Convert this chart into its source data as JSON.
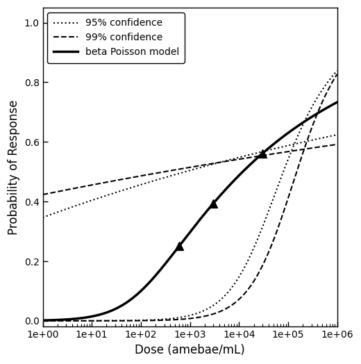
{
  "title": "",
  "xlabel": "Dose (amebae/mL)",
  "ylabel": "Probability of Response",
  "xlim_log": [
    0,
    6
  ],
  "ylim": [
    -0.02,
    1.05
  ],
  "alpha_main": 0.14192,
  "N50_main": 11908,
  "alpha_95_upper": 0.04,
  "N50_95_upper": 800,
  "alpha_95_lower": 0.5,
  "N50_95_lower": 80000,
  "alpha_99_upper": 0.025,
  "N50_99_upper": 300,
  "alpha_99_lower": 0.7,
  "N50_99_lower": 150000,
  "marker_doses": [
    600,
    3000,
    30000
  ],
  "line_color": "#000000",
  "background_color": "#ffffff",
  "legend_labels": [
    "beta Poisson model",
    "95% confidence",
    "99% confidence"
  ]
}
